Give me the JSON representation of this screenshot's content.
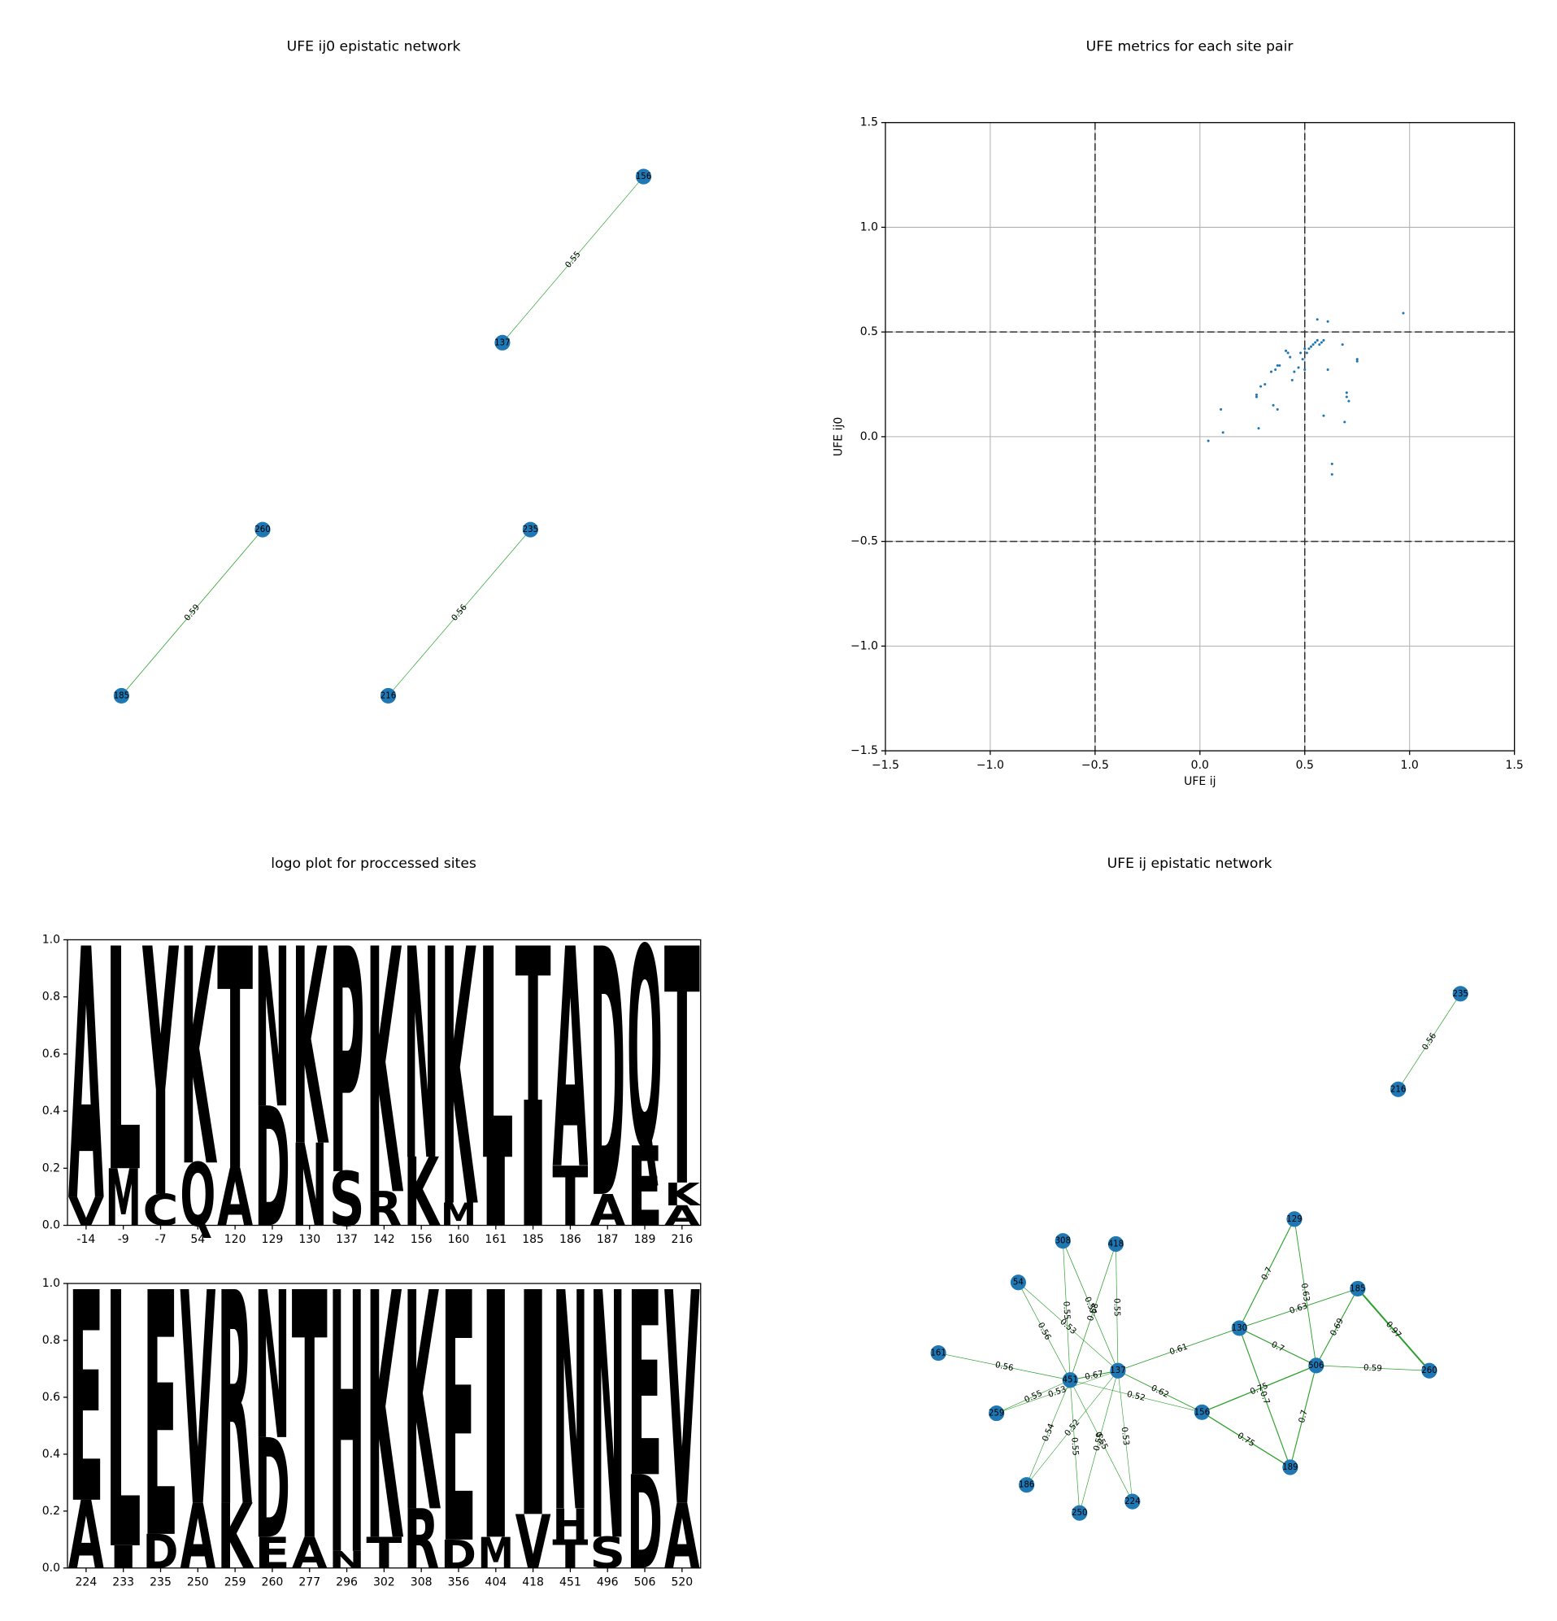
{
  "chart_data": [
    {
      "type": "network",
      "title": "UFE ij0 epistatic network",
      "node_color": "#1f77b4",
      "edge_color": "#2ca02c",
      "nodes": [
        "156",
        "137",
        "260",
        "185",
        "235",
        "216"
      ],
      "edges": [
        {
          "source": "137",
          "target": "156",
          "weight": 0.55
        },
        {
          "source": "185",
          "target": "260",
          "weight": 0.59
        },
        {
          "source": "216",
          "target": "235",
          "weight": 0.56
        }
      ]
    },
    {
      "type": "scatter",
      "title": "UFE metrics for each site pair",
      "xlabel": "UFE ij",
      "ylabel": "UFE ij0",
      "color": "#1f77b4",
      "grid": true,
      "xlim": [
        -1.5,
        1.5
      ],
      "ylim": [
        -1.5,
        1.5
      ],
      "xticks": [
        {
          "value": -1.5,
          "label": "−1.5"
        },
        {
          "value": -1,
          "label": "−1.0"
        },
        {
          "value": -0.5,
          "label": "−0.5"
        },
        {
          "value": 0,
          "label": "0.0"
        },
        0.5,
        {
          "value": 1,
          "label": "1.0"
        },
        1.5
      ],
      "yticks": [
        {
          "value": -1.5,
          "label": "−1.5"
        },
        {
          "value": -1,
          "label": "−1.0"
        },
        {
          "value": -0.5,
          "label": "−0.5"
        },
        {
          "value": 0,
          "label": "0.0"
        },
        0.5,
        {
          "value": 1,
          "label": "1.0"
        },
        1.5
      ],
      "hlines": [
        -0.5,
        0.5
      ],
      "vlines": [
        -0.5,
        0.5
      ],
      "x": [
        0.04,
        0.1,
        0.11,
        0.28,
        0.27,
        0.27,
        0.29,
        0.31,
        0.34,
        0.36,
        0.37,
        0.38,
        0.35,
        0.37,
        0.41,
        0.42,
        0.43,
        0.44,
        0.45,
        0.47,
        0.48,
        0.49,
        0.5,
        0.5,
        0.51,
        0.52,
        0.53,
        0.54,
        0.55,
        0.56,
        0.57,
        0.58,
        0.59,
        0.56,
        0.61,
        0.61,
        0.59,
        0.63,
        0.63,
        0.68,
        0.69,
        0.7,
        0.7,
        0.71,
        0.75,
        0.75,
        0.97
      ],
      "values": [
        -0.02,
        0.13,
        0.02,
        0.04,
        0.2,
        0.19,
        0.24,
        0.25,
        0.31,
        0.32,
        0.34,
        0.34,
        0.15,
        0.13,
        0.41,
        0.4,
        0.38,
        0.27,
        0.31,
        0.33,
        0.4,
        0.37,
        0.32,
        0.42,
        0.4,
        0.42,
        0.43,
        0.44,
        0.45,
        0.46,
        0.44,
        0.45,
        0.46,
        0.56,
        0.55,
        0.32,
        0.1,
        -0.13,
        -0.18,
        0.44,
        0.07,
        0.21,
        0.19,
        0.17,
        0.37,
        0.36,
        0.59
      ]
    },
    {
      "type": "logo",
      "title": "logo plot for proccessed sites",
      "ylim": [
        0,
        1
      ],
      "yticks": [
        {
          "value": 0,
          "label": "0.0"
        },
        0.2,
        0.4,
        0.6,
        0.8,
        {
          "value": 1,
          "label": "1.0"
        }
      ],
      "rows": [
        {
          "categories": [
            "-14",
            "-9",
            "-7",
            "54",
            "120",
            "129",
            "130",
            "137",
            "142",
            "156",
            "160",
            "161",
            "185",
            "186",
            "187",
            "189",
            "216"
          ],
          "stacks": [
            [
              {
                "letter": "V",
                "value": 0.1,
                "color": "#15a319"
              },
              {
                "letter": "A",
                "value": 0.88,
                "color": "#f66db5"
              }
            ],
            [
              {
                "letter": "M",
                "value": 0.2,
                "color": "#15a319"
              },
              {
                "letter": "L",
                "value": 0.78,
                "color": "#15a319"
              }
            ],
            [
              {
                "letter": "C",
                "value": 0.11,
                "color": "#fb7f0e"
              },
              {
                "letter": "Y",
                "value": 0.87,
                "color": "#8a3a10"
              }
            ],
            [
              {
                "letter": "Q",
                "value": 0.22,
                "color": "#9127a8"
              },
              {
                "letter": "K",
                "value": 0.76,
                "color": "#4053e0"
              }
            ],
            [
              {
                "letter": "A",
                "value": 0.2,
                "color": "#f66db5"
              },
              {
                "letter": "T",
                "value": 0.78,
                "color": "#fb7f0e"
              }
            ],
            [
              {
                "letter": "D",
                "value": 0.42,
                "color": "#e31a1c"
              },
              {
                "letter": "N",
                "value": 0.56,
                "color": "#9127a8"
              }
            ],
            [
              {
                "letter": "N",
                "value": 0.29,
                "color": "#9127a8"
              },
              {
                "letter": "K",
                "value": 0.69,
                "color": "#4053e0"
              }
            ],
            [
              {
                "letter": "S",
                "value": 0.19,
                "color": "#fb7f0e"
              },
              {
                "letter": "P",
                "value": 0.79,
                "color": "#15a319"
              }
            ],
            [
              {
                "letter": "R",
                "value": 0.12,
                "color": "#4053e0"
              },
              {
                "letter": "K",
                "value": 0.86,
                "color": "#4053e0"
              }
            ],
            [
              {
                "letter": "K",
                "value": 0.24,
                "color": "#4053e0"
              },
              {
                "letter": "N",
                "value": 0.74,
                "color": "#9127a8"
              }
            ],
            [
              {
                "letter": "M",
                "value": 0.08,
                "color": "#15a319"
              },
              {
                "letter": "K",
                "value": 0.9,
                "color": "#4053e0"
              }
            ],
            [
              {
                "letter": "I",
                "value": 0.24,
                "color": "#15a319"
              },
              {
                "letter": "L",
                "value": 0.74,
                "color": "#15a319"
              }
            ],
            [
              {
                "letter": "I",
                "value": 0.44,
                "color": "#15a319"
              },
              {
                "letter": "T",
                "value": 0.54,
                "color": "#fb7f0e"
              }
            ],
            [
              {
                "letter": "T",
                "value": 0.21,
                "color": "#fb7f0e"
              },
              {
                "letter": "A",
                "value": 0.77,
                "color": "#f66db5"
              }
            ],
            [
              {
                "letter": "A",
                "value": 0.11,
                "color": "#f66db5"
              },
              {
                "letter": "D",
                "value": 0.87,
                "color": "#e31a1c"
              }
            ],
            [
              {
                "letter": "E",
                "value": 0.28,
                "color": "#e31a1c"
              },
              {
                "letter": "Q",
                "value": 0.7,
                "color": "#9127a8"
              }
            ],
            [
              {
                "letter": "A",
                "value": 0.07,
                "color": "#f66db5"
              },
              {
                "letter": "K",
                "value": 0.08,
                "color": "#4053e0"
              },
              {
                "letter": "T",
                "value": 0.83,
                "color": "#fb7f0e"
              }
            ]
          ]
        },
        {
          "categories": [
            "224",
            "233",
            "235",
            "250",
            "259",
            "260",
            "277",
            "296",
            "302",
            "308",
            "356",
            "404",
            "418",
            "451",
            "496",
            "506",
            "520"
          ],
          "stacks": [
            [
              {
                "letter": "A",
                "value": 0.24,
                "color": "#f66db5"
              },
              {
                "letter": "E",
                "value": 0.74,
                "color": "#e31a1c"
              }
            ],
            [
              {
                "letter": "I",
                "value": 0.08,
                "color": "#15a319"
              },
              {
                "letter": "L",
                "value": 0.9,
                "color": "#15a319"
              }
            ],
            [
              {
                "letter": "D",
                "value": 0.12,
                "color": "#e31a1c"
              },
              {
                "letter": "E",
                "value": 0.86,
                "color": "#e31a1c"
              }
            ],
            [
              {
                "letter": "A",
                "value": 0.23,
                "color": "#f66db5"
              },
              {
                "letter": "V",
                "value": 0.75,
                "color": "#15a319"
              }
            ],
            [
              {
                "letter": "K",
                "value": 0.23,
                "color": "#4053e0"
              },
              {
                "letter": "R",
                "value": 0.75,
                "color": "#4053e0"
              }
            ],
            [
              {
                "letter": "E",
                "value": 0.11,
                "color": "#e31a1c"
              },
              {
                "letter": "D",
                "value": 0.35,
                "color": "#e31a1c"
              },
              {
                "letter": "N",
                "value": 0.52,
                "color": "#9127a8"
              }
            ],
            [
              {
                "letter": "A",
                "value": 0.11,
                "color": "#f66db5"
              },
              {
                "letter": "T",
                "value": 0.87,
                "color": "#fb7f0e"
              }
            ],
            [
              {
                "letter": "N",
                "value": 0.06,
                "color": "#9127a8"
              },
              {
                "letter": "H",
                "value": 0.92,
                "color": "#4053e0"
              }
            ],
            [
              {
                "letter": "T",
                "value": 0.11,
                "color": "#fb7f0e"
              },
              {
                "letter": "K",
                "value": 0.87,
                "color": "#4053e0"
              }
            ],
            [
              {
                "letter": "R",
                "value": 0.21,
                "color": "#4053e0"
              },
              {
                "letter": "K",
                "value": 0.77,
                "color": "#4053e0"
              }
            ],
            [
              {
                "letter": "D",
                "value": 0.1,
                "color": "#e31a1c"
              },
              {
                "letter": "E",
                "value": 0.88,
                "color": "#e31a1c"
              }
            ],
            [
              {
                "letter": "M",
                "value": 0.11,
                "color": "#15a319"
              },
              {
                "letter": "I",
                "value": 0.87,
                "color": "#15a319"
              }
            ],
            [
              {
                "letter": "V",
                "value": 0.19,
                "color": "#15a319"
              },
              {
                "letter": "I",
                "value": 0.79,
                "color": "#15a319"
              }
            ],
            [
              {
                "letter": "T",
                "value": 0.1,
                "color": "#fb7f0e"
              },
              {
                "letter": "H",
                "value": 0.11,
                "color": "#4053e0"
              },
              {
                "letter": "N",
                "value": 0.77,
                "color": "#9127a8"
              }
            ],
            [
              {
                "letter": "S",
                "value": 0.11,
                "color": "#fb7f0e"
              },
              {
                "letter": "N",
                "value": 0.87,
                "color": "#9127a8"
              }
            ],
            [
              {
                "letter": "D",
                "value": 0.33,
                "color": "#e31a1c"
              },
              {
                "letter": "E",
                "value": 0.65,
                "color": "#e31a1c"
              }
            ],
            [
              {
                "letter": "A",
                "value": 0.23,
                "color": "#f66db5"
              },
              {
                "letter": "V",
                "value": 0.75,
                "color": "#15a319"
              }
            ]
          ]
        }
      ]
    },
    {
      "type": "network",
      "title": "UFE ij epistatic network",
      "node_color": "#1f77b4",
      "edge_color": "#2ca02c",
      "nodes": [
        "235",
        "216",
        "129",
        "308",
        "418",
        "185",
        "54",
        "130",
        "161",
        "506",
        "260",
        "451",
        "137",
        "156",
        "259",
        "189",
        "186",
        "224",
        "250"
      ],
      "edges": [
        {
          "source": "216",
          "target": "235",
          "weight": 0.56
        },
        {
          "source": "129",
          "target": "130",
          "weight": 0.7
        },
        {
          "source": "129",
          "target": "506",
          "weight": 0.63
        },
        {
          "source": "130",
          "target": "185",
          "weight": 0.63
        },
        {
          "source": "185",
          "target": "506",
          "weight": 0.69
        },
        {
          "source": "185",
          "target": "260",
          "weight": 0.97
        },
        {
          "source": "130",
          "target": "506",
          "weight": 0.7
        },
        {
          "source": "506",
          "target": "260",
          "weight": 0.59
        },
        {
          "source": "137",
          "target": "130",
          "weight": 0.61
        },
        {
          "source": "156",
          "target": "506",
          "weight": 0.75
        },
        {
          "source": "130",
          "target": "189",
          "weight": 0.7
        },
        {
          "source": "506",
          "target": "189",
          "weight": 0.7
        },
        {
          "source": "156",
          "target": "189",
          "weight": 0.75
        },
        {
          "source": "137",
          "target": "156",
          "weight": 0.62
        },
        {
          "source": "451",
          "target": "156",
          "weight": 0.52
        },
        {
          "source": "451",
          "target": "137",
          "weight": 0.67
        },
        {
          "source": "161",
          "target": "451",
          "weight": 0.56
        },
        {
          "source": "259",
          "target": "451",
          "weight": 0.55
        },
        {
          "source": "259",
          "target": "137",
          "weight": 0.53
        },
        {
          "source": "54",
          "target": "451",
          "weight": 0.56
        },
        {
          "source": "54",
          "target": "137",
          "weight": 0.53
        },
        {
          "source": "308",
          "target": "451",
          "weight": 0.55
        },
        {
          "source": "308",
          "target": "137",
          "weight": 0.57
        },
        {
          "source": "418",
          "target": "451",
          "weight": 0.58
        },
        {
          "source": "418",
          "target": "137",
          "weight": 0.55
        },
        {
          "source": "186",
          "target": "451",
          "weight": 0.54
        },
        {
          "source": "186",
          "target": "137",
          "weight": 0.52
        },
        {
          "source": "250",
          "target": "451",
          "weight": 0.55
        },
        {
          "source": "250",
          "target": "137",
          "weight": 0.55
        },
        {
          "source": "224",
          "target": "451",
          "weight": 0.55
        },
        {
          "source": "224",
          "target": "137",
          "weight": 0.53
        }
      ]
    }
  ]
}
